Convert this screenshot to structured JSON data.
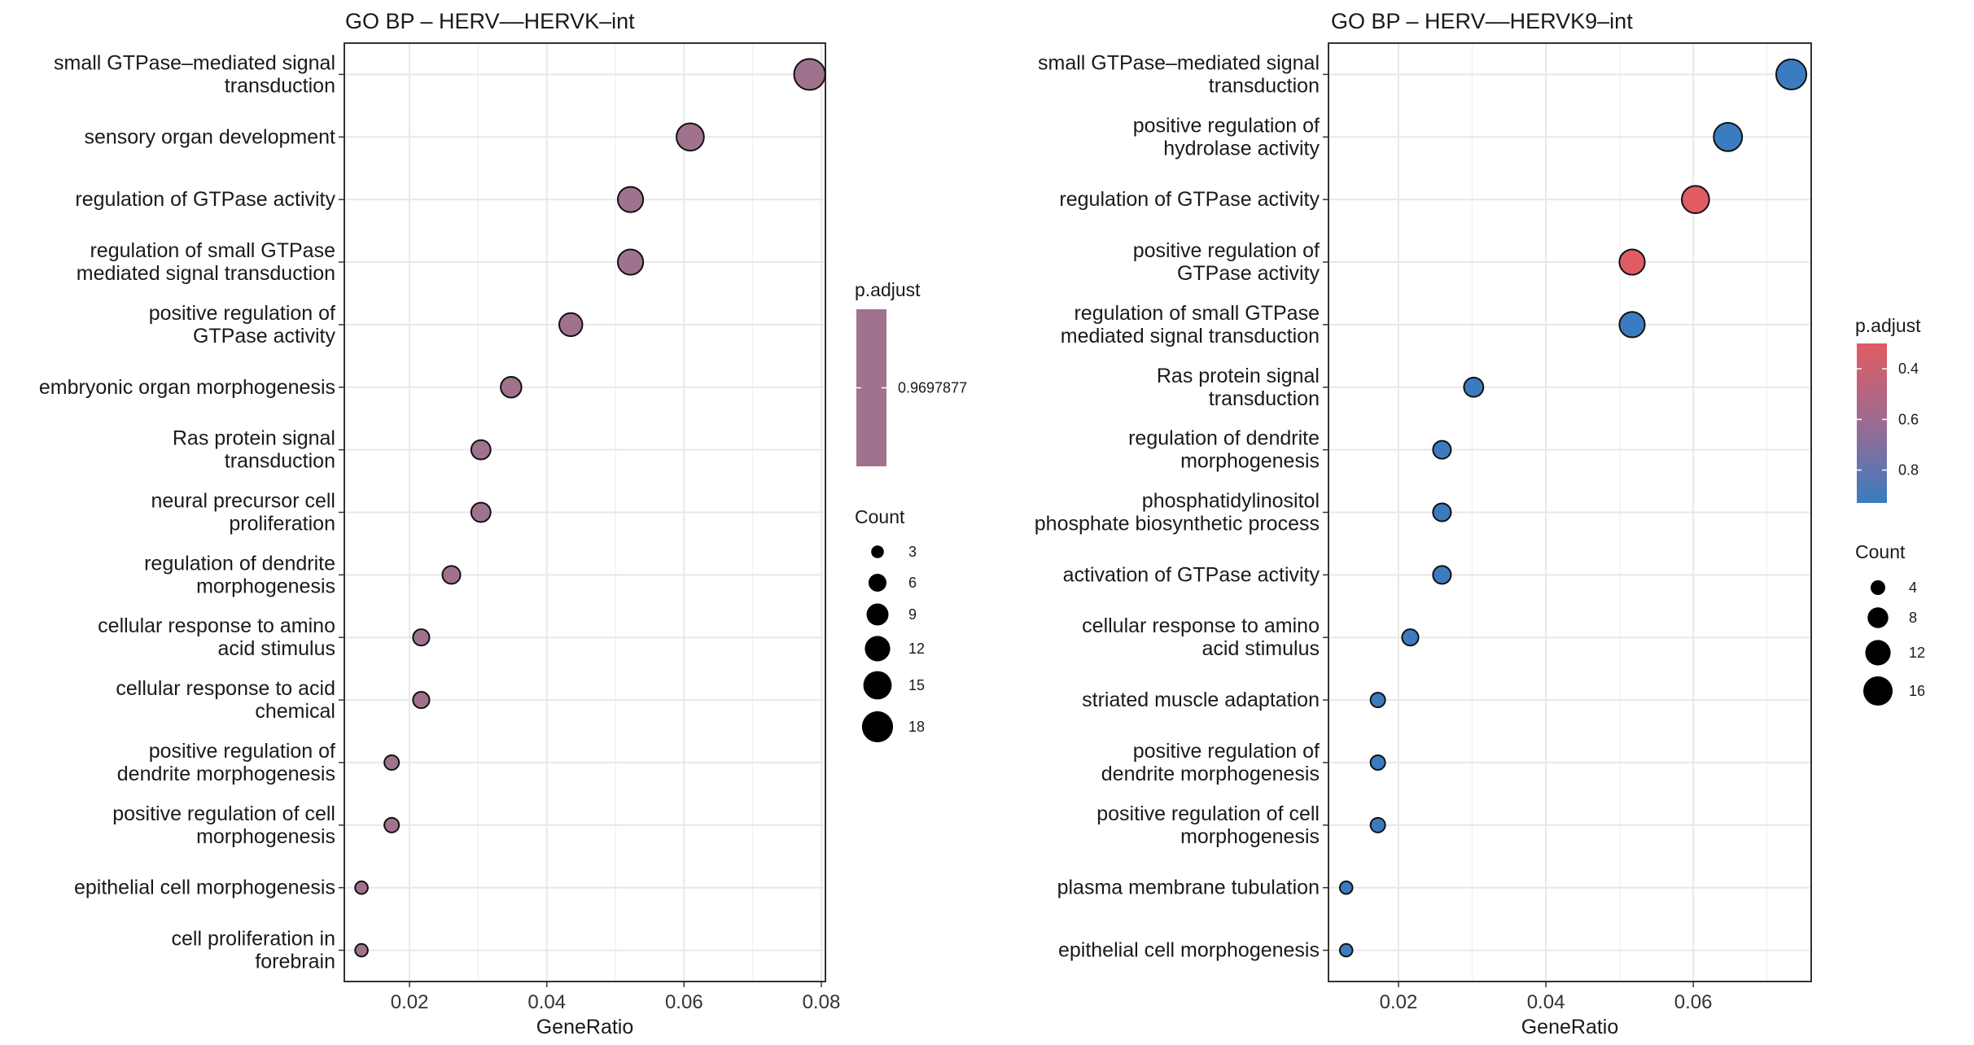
{
  "chart_data": [
    {
      "type": "scatter",
      "title": "GO BP - HERV--HERVK-int",
      "xlabel": "GeneRatio",
      "ylabel": "",
      "xlim": [
        0.0105,
        0.0806
      ],
      "xticks": [
        0.02,
        0.04,
        0.06,
        0.08
      ],
      "xtick_labels": [
        "0.02",
        "0.04",
        "0.06",
        "0.08"
      ],
      "grid": true,
      "legend_position": "right",
      "categories": [
        "small GTPase-mediated signal\ntransduction",
        "sensory organ development",
        "regulation of GTPase activity",
        "regulation of small GTPase\nmediated signal transduction",
        "positive regulation of\nGTPase activity",
        "embryonic organ morphogenesis",
        "Ras protein signal\ntransduction",
        "neural precursor cell\nproliferation",
        "regulation of dendrite\nmorphogenesis",
        "cellular response to amino\nacid stimulus",
        "cellular response to acid\nchemical",
        "positive regulation of\ndendrite morphogenesis",
        "positive regulation of cell\nmorphogenesis",
        "epithelial cell morphogenesis",
        "cell proliferation in\nforebrain"
      ],
      "x": [
        0.0783,
        0.0609,
        0.0522,
        0.0522,
        0.0435,
        0.0348,
        0.0304,
        0.0304,
        0.0261,
        0.0217,
        0.0217,
        0.0174,
        0.0174,
        0.013,
        0.013
      ],
      "count": [
        18,
        14,
        12,
        12,
        10,
        8,
        7,
        7,
        6,
        5,
        5,
        4,
        4,
        3,
        3
      ],
      "p_adjust": [
        0.9697877,
        0.9697877,
        0.9697877,
        0.9697877,
        0.9697877,
        0.9697877,
        0.9697877,
        0.9697877,
        0.9697877,
        0.9697877,
        0.9697877,
        0.9697877,
        0.9697877,
        0.9697877,
        0.9697877
      ],
      "color_legend": {
        "title": "p.adjust",
        "type": "single",
        "color": "#a0728e",
        "labels": [
          "0.9697877"
        ]
      },
      "size_legend": {
        "title": "Count",
        "labels": [
          "3",
          "6",
          "9",
          "12",
          "15",
          "18"
        ],
        "values": [
          3,
          6,
          9,
          12,
          15,
          18
        ]
      }
    },
    {
      "type": "scatter",
      "title": "GO BP - HERV--HERVK9-int",
      "xlabel": "GeneRatio",
      "ylabel": "",
      "xlim": [
        0.0105,
        0.076
      ],
      "xticks": [
        0.02,
        0.04,
        0.06
      ],
      "xtick_labels": [
        "0.02",
        "0.04",
        "0.06"
      ],
      "grid": true,
      "legend_position": "right",
      "categories": [
        "small GTPase-mediated signal\ntransduction",
        "positive regulation of\nhydrolase activity",
        "regulation of GTPase activity",
        "positive regulation of\nGTPase activity",
        "regulation of small GTPase\nmediated signal transduction",
        "Ras protein signal\ntransduction",
        "regulation of dendrite\nmorphogenesis",
        "phosphatidylinositol\nphosphate biosynthetic process",
        "activation of GTPase activity",
        "cellular response to amino\nacid stimulus",
        "striated muscle adaptation",
        "positive regulation of\ndendrite morphogenesis",
        "positive regulation of cell\nmorphogenesis",
        "plasma membrane tubulation",
        "epithelial cell morphogenesis"
      ],
      "x": [
        0.0733,
        0.0647,
        0.0603,
        0.0517,
        0.0517,
        0.0302,
        0.0259,
        0.0259,
        0.0259,
        0.0216,
        0.0172,
        0.0172,
        0.0172,
        0.0129,
        0.0129
      ],
      "count": [
        17,
        15,
        14,
        12,
        12,
        7,
        6,
        6,
        6,
        5,
        4,
        4,
        4,
        3,
        3
      ],
      "p_adjust": [
        0.93,
        0.93,
        0.3,
        0.3,
        0.93,
        0.93,
        0.93,
        0.93,
        0.93,
        0.93,
        0.93,
        0.93,
        0.93,
        0.93,
        0.93
      ],
      "color_legend": {
        "title": "p.adjust",
        "type": "gradient",
        "low_color": "#e05c63",
        "high_color": "#3b7cc0",
        "range": [
          0.3,
          0.93
        ],
        "labels": [
          "0.4",
          "0.6",
          "0.8"
        ],
        "values": [
          0.4,
          0.6,
          0.8
        ]
      },
      "size_legend": {
        "title": "Count",
        "labels": [
          "4",
          "8",
          "12",
          "16"
        ],
        "values": [
          4,
          8,
          12,
          16
        ]
      }
    }
  ]
}
